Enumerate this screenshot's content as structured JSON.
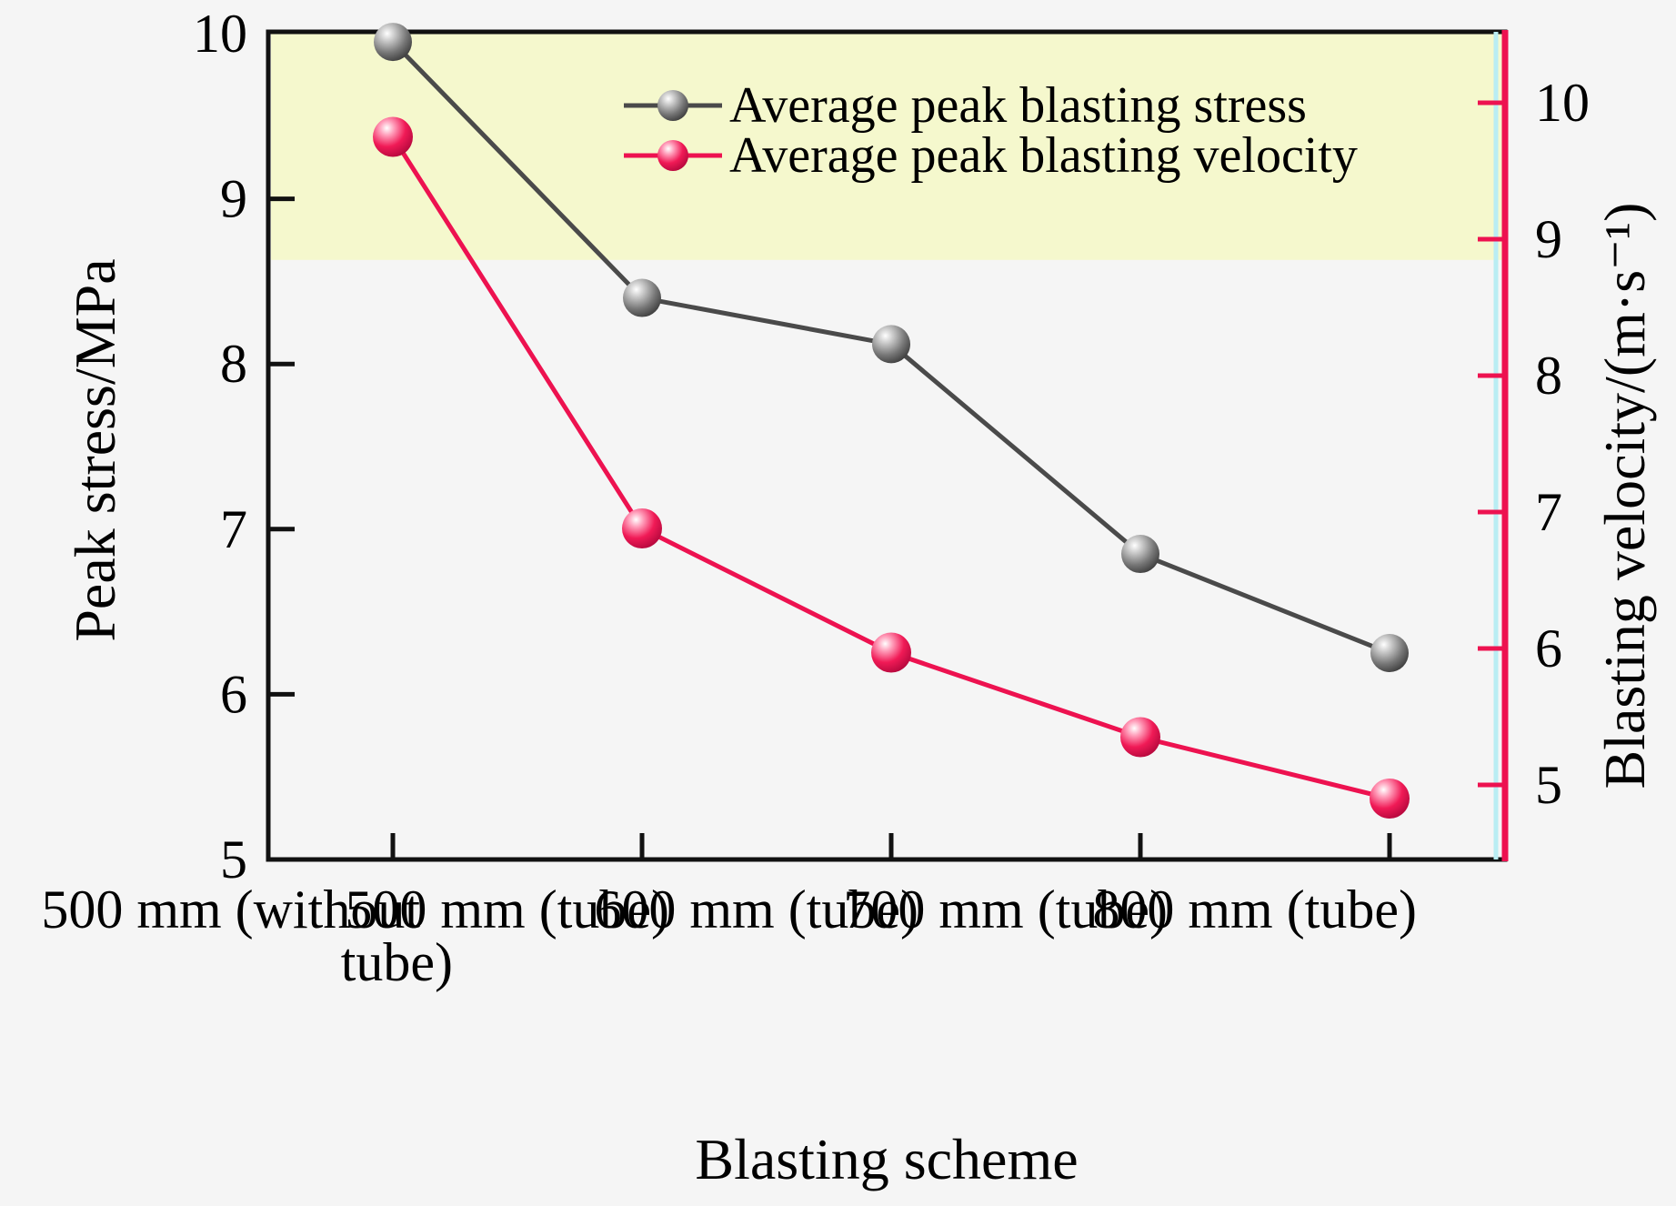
{
  "figure": {
    "background_color": "#f5f5f5",
    "frame_color": "#111111",
    "band_color": "#f5f8cd",
    "right_axis_color": "#ed1250",
    "right_axis_artifact_color": "#b9edf3"
  },
  "chart_data": {
    "type": "line",
    "title": "",
    "xlabel": "Blasting scheme",
    "ylabel_left": "Peak stress/MPa",
    "ylabel_right": "Blasting velocity/(m·s⁻¹)",
    "categories": [
      "500 mm (without tube)",
      "500 mm (tube)",
      "600 mm (tube)",
      "700 mm (tube)",
      "800 mm (tube)"
    ],
    "category_lines": [
      [
        "500 mm (without",
        "tube)"
      ],
      [
        "500 mm (tube)"
      ],
      [
        "600 mm (tube)"
      ],
      [
        "700 mm (tube)"
      ],
      [
        "800 mm (tube)"
      ]
    ],
    "left_axis": {
      "ticks": [
        10,
        9,
        8,
        7,
        6,
        5
      ],
      "range": [
        5,
        10
      ],
      "tick_color": "#111111",
      "label_color": "#000000"
    },
    "right_axis": {
      "ticks": [
        10,
        9,
        8,
        7,
        6,
        5
      ],
      "range": [
        4.45,
        10.55
      ],
      "tick_color": "#ed1250",
      "label_color": "#000000"
    },
    "highlight_band": {
      "from_left_axis_value": 8.63,
      "to_left_axis_value": 10.55,
      "color": "#f5f8cd"
    },
    "grid": "off",
    "legend_position": "upper center",
    "series": [
      {
        "name": "Average peak blasting stress",
        "axis": "left",
        "color": "#4a4a4a",
        "marker": "gray-sphere",
        "values": [
          9.95,
          8.4,
          8.12,
          6.85,
          6.25
        ]
      },
      {
        "name": "Average peak blasting velocity",
        "axis": "right",
        "color": "#ed1250",
        "marker": "red-sphere",
        "values": [
          9.75,
          6.88,
          5.97,
          5.35,
          4.9
        ]
      }
    ]
  }
}
